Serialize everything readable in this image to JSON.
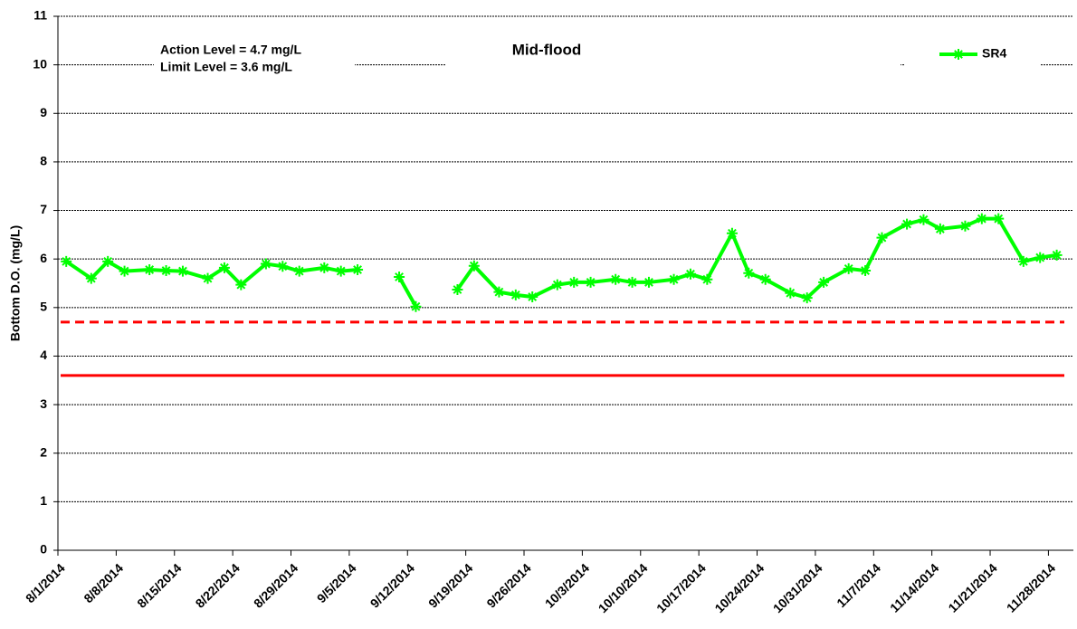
{
  "chart_data": {
    "type": "line",
    "title": "Mid-flood",
    "y_label": "Bottom D.O. (mg/L)",
    "annotations": [
      "Action Level = 4.7 mg/L",
      "Limit Level = 3.6 mg/L"
    ],
    "reference_lines": [
      {
        "value": 4.7,
        "color": "#ff0000",
        "dashed": true
      },
      {
        "value": 3.6,
        "color": "#ff0000",
        "dashed": false
      }
    ],
    "x": [
      "2014-08-02",
      "2014-08-05",
      "2014-08-07",
      "2014-08-09",
      "2014-08-12",
      "2014-08-14",
      "2014-08-16",
      "2014-08-19",
      "2014-08-21",
      "2014-08-23",
      "2014-08-26",
      "2014-08-28",
      "2014-08-30",
      "2014-09-02",
      "2014-09-04",
      "2014-09-06",
      "2014-09-09",
      "2014-09-11",
      "2014-09-13",
      "2014-09-16",
      "2014-09-18",
      "2014-09-20",
      "2014-09-23",
      "2014-09-25",
      "2014-09-27",
      "2014-09-30",
      "2014-10-02",
      "2014-10-04",
      "2014-10-07",
      "2014-10-09",
      "2014-10-11",
      "2014-10-14",
      "2014-10-16",
      "2014-10-18",
      "2014-10-21",
      "2014-10-23",
      "2014-10-25",
      "2014-10-28",
      "2014-10-30",
      "2014-11-01",
      "2014-11-04",
      "2014-11-06",
      "2014-11-08",
      "2014-11-11",
      "2014-11-13",
      "2014-11-15",
      "2014-11-18",
      "2014-11-20",
      "2014-11-22",
      "2014-11-25",
      "2014-11-27",
      "2014-11-29"
    ],
    "series": [
      {
        "name": "SR4",
        "color": "#00ff00",
        "values": [
          5.95,
          5.6,
          5.95,
          5.75,
          5.78,
          5.76,
          5.75,
          5.6,
          5.82,
          5.47,
          5.9,
          5.85,
          5.75,
          5.82,
          5.75,
          5.78,
          null,
          5.63,
          5.02,
          null,
          5.37,
          5.86,
          5.32,
          5.26,
          5.22,
          5.47,
          5.52,
          5.52,
          5.58,
          5.52,
          5.52,
          5.58,
          5.69,
          5.58,
          6.53,
          5.71,
          5.58,
          5.3,
          5.2,
          5.52,
          5.8,
          5.76,
          6.44,
          6.72,
          6.81,
          6.62,
          6.68,
          6.83,
          6.83,
          5.95,
          6.03,
          6.08
        ]
      }
    ],
    "xlim": [
      "2014-08-01",
      "2014-12-01"
    ],
    "xticks": [
      {
        "value": "2014-08-01",
        "label": "8/1/2014"
      },
      {
        "value": "2014-08-08",
        "label": "8/8/2014"
      },
      {
        "value": "2014-08-15",
        "label": "8/15/2014"
      },
      {
        "value": "2014-08-22",
        "label": "8/22/2014"
      },
      {
        "value": "2014-08-29",
        "label": "8/29/2014"
      },
      {
        "value": "2014-09-05",
        "label": "9/5/2014"
      },
      {
        "value": "2014-09-12",
        "label": "9/12/2014"
      },
      {
        "value": "2014-09-19",
        "label": "9/19/2014"
      },
      {
        "value": "2014-09-26",
        "label": "9/26/2014"
      },
      {
        "value": "2014-10-03",
        "label": "10/3/2014"
      },
      {
        "value": "2014-10-10",
        "label": "10/10/2014"
      },
      {
        "value": "2014-10-17",
        "label": "10/17/2014"
      },
      {
        "value": "2014-10-24",
        "label": "10/24/2014"
      },
      {
        "value": "2014-10-31",
        "label": "10/31/2014"
      },
      {
        "value": "2014-11-07",
        "label": "11/7/2014"
      },
      {
        "value": "2014-11-14",
        "label": "11/14/2014"
      },
      {
        "value": "2014-11-21",
        "label": "11/21/2014"
      },
      {
        "value": "2014-11-28",
        "label": "11/28/2014"
      }
    ],
    "ylim": [
      0,
      11
    ],
    "yticks": [
      0,
      1,
      2,
      3,
      4,
      5,
      6,
      7,
      8,
      9,
      10,
      11
    ],
    "grid": true,
    "legend_position": "top-right"
  }
}
